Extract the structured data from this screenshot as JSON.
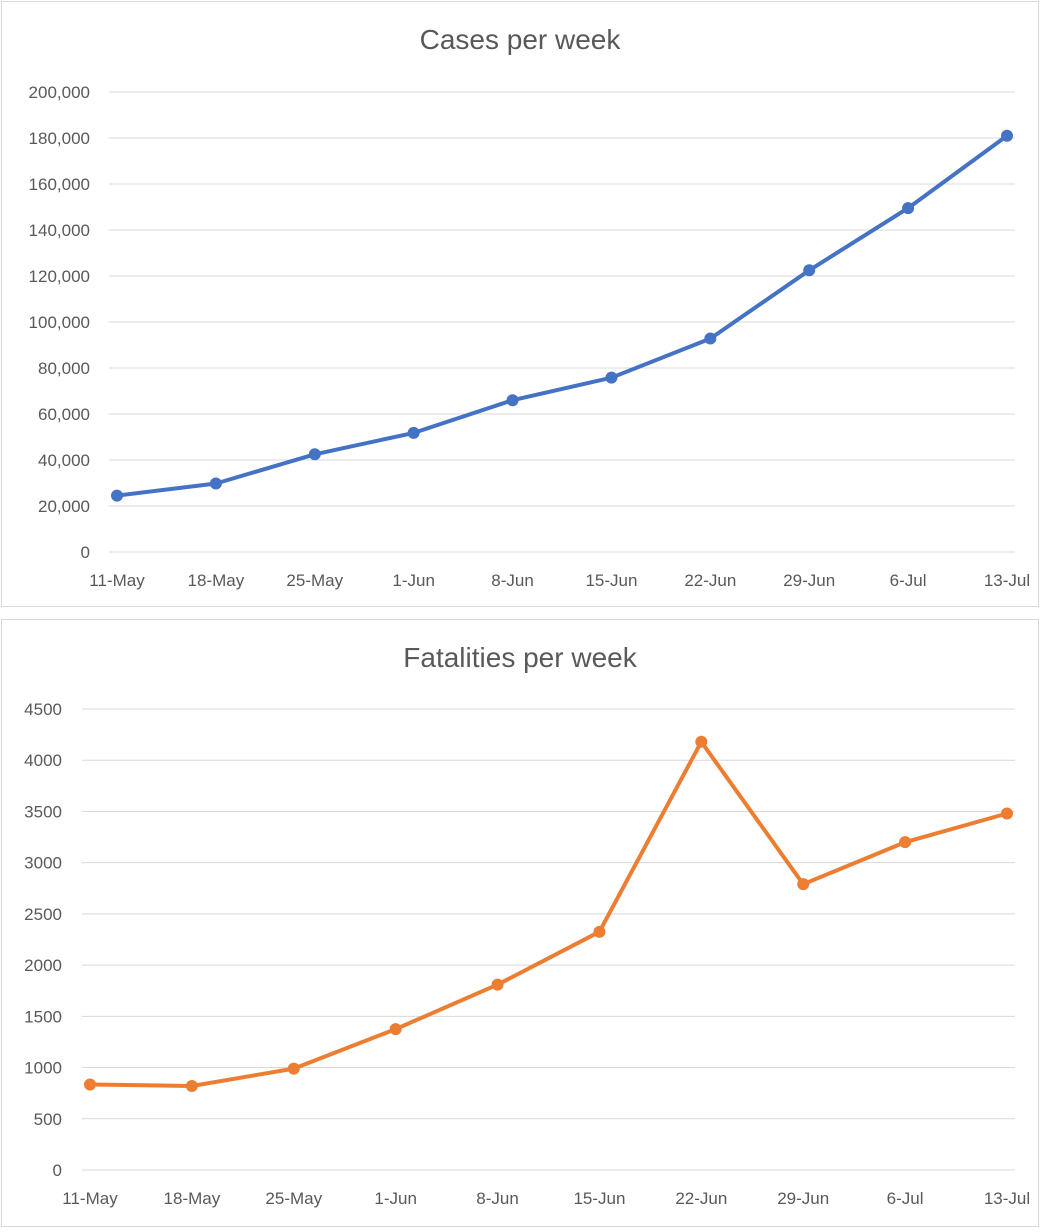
{
  "chart_data": [
    {
      "type": "line",
      "title": "Cases per week",
      "xlabel": "",
      "ylabel": "",
      "categories": [
        "11-May",
        "18-May",
        "25-May",
        "1-Jun",
        "8-Jun",
        "15-Jun",
        "22-Jun",
        "29-Jun",
        "6-Jul",
        "13-Jul"
      ],
      "series": [
        {
          "color": "#4472C4",
          "values": [
            24500,
            29800,
            42500,
            51800,
            66000,
            75800,
            92800,
            122500,
            149500,
            181000
          ]
        }
      ],
      "ylim": [
        0,
        200000
      ],
      "yticks": [
        0,
        20000,
        40000,
        60000,
        80000,
        100000,
        120000,
        140000,
        160000,
        180000,
        200000
      ],
      "ytick_labels": [
        "0",
        "20,000",
        "40,000",
        "60,000",
        "80,000",
        "100,000",
        "120,000",
        "140,000",
        "160,000",
        "180,000",
        "200,000"
      ],
      "grid": true,
      "legend": "none"
    },
    {
      "type": "line",
      "title": "Fatalities per week",
      "xlabel": "",
      "ylabel": "",
      "categories": [
        "11-May",
        "18-May",
        "25-May",
        "1-Jun",
        "8-Jun",
        "15-Jun",
        "22-Jun",
        "29-Jun",
        "6-Jul",
        "13-Jul"
      ],
      "series": [
        {
          "color": "#ED7D31",
          "values": [
            835,
            820,
            990,
            1375,
            1810,
            2325,
            4180,
            2790,
            3200,
            3480
          ]
        }
      ],
      "ylim": [
        0,
        4500
      ],
      "yticks": [
        0,
        500,
        1000,
        1500,
        2000,
        2500,
        3000,
        3500,
        4000,
        4500
      ],
      "ytick_labels": [
        "0",
        "500",
        "1000",
        "1500",
        "2000",
        "2500",
        "3000",
        "3500",
        "4000",
        "4500"
      ],
      "grid": true,
      "legend": "none"
    }
  ]
}
